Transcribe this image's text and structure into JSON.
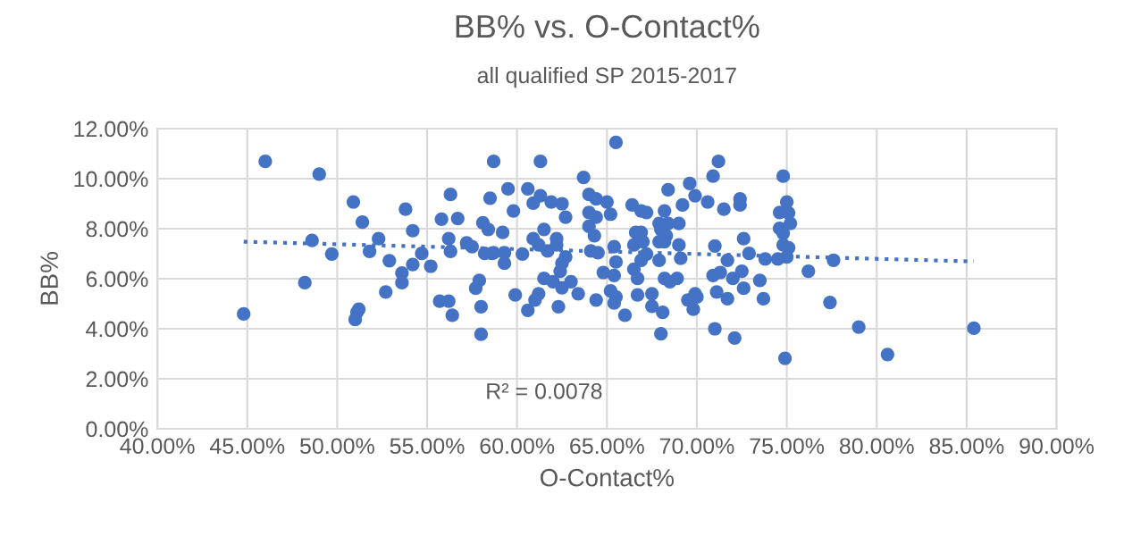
{
  "chart_data": {
    "type": "scatter",
    "title": "BB% vs. O-Contact%",
    "subtitle": "all qualified SP 2015-2017",
    "xlabel": "O-Contact%",
    "ylabel": "BB%",
    "annotations": [
      "R² = 0.0078"
    ],
    "series": [
      {
        "color": "#4472c4",
        "marker": "circle",
        "x": [
          46.0,
          49.0,
          50.9,
          51.4,
          48.6,
          49.7,
          48.2,
          44.8,
          51.1,
          51.2,
          51.0,
          52.3,
          51.8,
          52.9,
          52.7,
          53.6,
          53.6,
          53.8,
          54.2,
          54.2,
          54.7,
          55.2,
          55.7,
          56.2,
          56.4,
          55.8,
          56.3,
          56.7,
          56.2,
          56.3,
          57.2,
          57.5,
          57.7,
          57.9,
          58.0,
          58.0,
          58.7,
          58.5,
          58.1,
          58.4,
          58.2,
          58.6,
          61.3,
          65.5,
          59.5,
          59.8,
          60.6,
          61.3,
          60.9,
          61.9,
          62.5,
          62.7,
          63.7,
          64.0,
          64.4,
          65.0,
          64.0,
          64.4,
          65.2,
          64.0,
          64.3,
          64.1,
          64.5,
          65.4,
          59.2,
          58.7,
          59.3,
          59.3,
          60.3,
          60.9,
          61.2,
          61.5,
          61.7,
          62.2,
          62.2,
          62.7,
          62.5,
          62.4,
          61.5,
          62.0,
          63.0,
          62.5,
          63.4,
          61.2,
          61.0,
          60.6,
          62.3,
          59.9,
          64.4,
          64.8,
          65.4,
          65.5,
          65.2,
          65.5,
          65.4,
          66.0,
          66.4,
          66.9,
          67.2,
          66.6,
          66.9,
          67.0,
          66.5,
          67.2,
          66.9,
          66.5,
          66.7,
          66.7,
          67.5,
          67.5,
          68.1,
          68.0,
          68.4,
          68.2,
          67.9,
          68.0,
          68.4,
          68.3,
          68.2,
          67.9,
          69.0,
          69.2,
          69.0,
          69.1,
          68.2,
          68.5,
          68.9,
          67.9,
          69.9,
          69.5,
          70.0,
          69.8,
          69.6,
          69.9,
          70.9,
          70.6,
          71.2,
          71.5,
          72.4,
          72.4,
          71.0,
          72.6,
          72.9,
          71.7,
          70.9,
          71.3,
          72.5,
          72.0,
          71.1,
          71.7,
          72.6,
          73.5,
          73.7,
          73.8,
          71.0,
          72.1,
          74.8,
          75.0,
          74.6,
          75.1,
          75.2,
          74.6,
          74.8,
          74.8,
          75.1,
          75.0,
          74.5,
          74.9,
          76.2,
          77.6,
          77.4,
          79.0,
          80.6,
          85.4
        ],
        "values": [
          10.69,
          10.18,
          9.07,
          8.26,
          7.53,
          6.99,
          5.84,
          4.59,
          4.66,
          4.78,
          4.37,
          7.6,
          7.09,
          6.72,
          5.47,
          6.23,
          5.84,
          8.78,
          7.92,
          6.57,
          7.01,
          6.5,
          5.1,
          5.1,
          4.54,
          8.38,
          9.37,
          8.41,
          7.6,
          7.09,
          7.43,
          7.28,
          5.62,
          5.93,
          4.88,
          3.78,
          10.69,
          9.22,
          8.24,
          7.97,
          7.01,
          7.01,
          10.69,
          11.45,
          9.59,
          8.71,
          9.59,
          9.32,
          9.02,
          9.07,
          9.0,
          8.46,
          10.05,
          9.37,
          9.19,
          9.07,
          8.65,
          8.46,
          8.58,
          8.09,
          7.72,
          7.11,
          7.04,
          7.28,
          7.85,
          7.04,
          7.04,
          6.62,
          6.99,
          7.6,
          7.35,
          7.97,
          7.11,
          7.6,
          7.35,
          6.87,
          6.62,
          6.3,
          6.01,
          5.88,
          5.88,
          5.64,
          5.4,
          5.4,
          5.15,
          4.74,
          4.88,
          5.35,
          5.15,
          6.25,
          6.13,
          6.67,
          5.51,
          5.27,
          5.03,
          4.54,
          8.95,
          8.71,
          8.65,
          7.85,
          7.85,
          7.48,
          7.35,
          6.99,
          6.74,
          6.38,
          6.01,
          5.35,
          5.4,
          4.9,
          4.66,
          3.8,
          9.56,
          8.71,
          8.21,
          7.97,
          8.21,
          7.72,
          7.48,
          7.48,
          8.21,
          8.95,
          7.35,
          6.82,
          6.01,
          5.88,
          6.01,
          6.74,
          5.4,
          5.15,
          5.27,
          4.78,
          9.81,
          9.32,
          10.1,
          9.07,
          10.69,
          8.78,
          9.19,
          8.95,
          7.31,
          7.6,
          7.01,
          6.74,
          6.13,
          6.25,
          6.3,
          6.01,
          5.47,
          5.2,
          5.62,
          5.93,
          5.2,
          6.79,
          4.0,
          3.63,
          10.1,
          9.07,
          8.65,
          8.63,
          8.21,
          8.01,
          7.82,
          7.35,
          7.24,
          6.87,
          6.79,
          2.82,
          6.3,
          6.74,
          5.05,
          4.07,
          2.97,
          4.02
        ]
      },
      {
        "type": "line",
        "color": "#4472c4",
        "line_style": "dotted",
        "marker": "none",
        "x": [
          44.8,
          85.4
        ],
        "values": [
          7.48,
          6.69
        ]
      }
    ],
    "xlim": [
      40,
      90
    ],
    "ylim": [
      0,
      12
    ],
    "xticks": [
      {
        "value": 40,
        "label": "40.00%"
      },
      {
        "value": 45,
        "label": "45.00%"
      },
      {
        "value": 50,
        "label": "50.00%"
      },
      {
        "value": 55,
        "label": "55.00%"
      },
      {
        "value": 60,
        "label": "60.00%"
      },
      {
        "value": 65,
        "label": "65.00%"
      },
      {
        "value": 70,
        "label": "70.00%"
      },
      {
        "value": 75,
        "label": "75.00%"
      },
      {
        "value": 80,
        "label": "80.00%"
      },
      {
        "value": 85,
        "label": "85.00%"
      },
      {
        "value": 90,
        "label": "90.00%"
      }
    ],
    "yticks": [
      {
        "value": 0,
        "label": "0.00%"
      },
      {
        "value": 2,
        "label": "2.00%"
      },
      {
        "value": 4,
        "label": "4.00%"
      },
      {
        "value": 6,
        "label": "6.00%"
      },
      {
        "value": 8,
        "label": "8.00%"
      },
      {
        "value": 10,
        "label": "10.00%"
      },
      {
        "value": 12,
        "label": "12.00%"
      }
    ],
    "grid": true,
    "legend": false
  }
}
